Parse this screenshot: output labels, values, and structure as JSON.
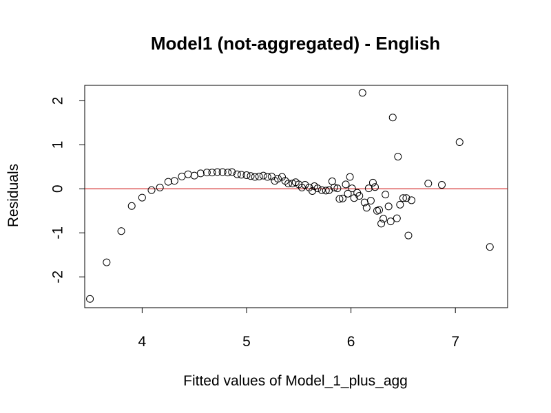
{
  "chart_data": {
    "type": "scatter",
    "title": "Model1 (not-aggregated) - English",
    "xlabel": "Fitted values of Model_1_plus_agg",
    "ylabel": "Residuals",
    "xlim": [
      3.45,
      7.5
    ],
    "ylim": [
      -2.7,
      2.35
    ],
    "xticks": [
      4,
      5,
      6,
      7
    ],
    "yticks": [
      -2,
      -1,
      0,
      1,
      2
    ],
    "grid": false,
    "reference_line": {
      "y": 0,
      "color": "#cc0000"
    },
    "marker": {
      "shape": "open-circle",
      "color": "#000000"
    },
    "points": [
      {
        "x": 3.5,
        "y": -2.5
      },
      {
        "x": 3.66,
        "y": -1.67
      },
      {
        "x": 3.8,
        "y": -0.96
      },
      {
        "x": 3.9,
        "y": -0.39
      },
      {
        "x": 4.0,
        "y": -0.2
      },
      {
        "x": 4.09,
        "y": -0.03
      },
      {
        "x": 4.17,
        "y": 0.03
      },
      {
        "x": 4.25,
        "y": 0.16
      },
      {
        "x": 4.31,
        "y": 0.18
      },
      {
        "x": 4.38,
        "y": 0.28
      },
      {
        "x": 4.44,
        "y": 0.33
      },
      {
        "x": 4.5,
        "y": 0.3
      },
      {
        "x": 4.56,
        "y": 0.35
      },
      {
        "x": 4.62,
        "y": 0.37
      },
      {
        "x": 4.67,
        "y": 0.37
      },
      {
        "x": 4.72,
        "y": 0.38
      },
      {
        "x": 4.77,
        "y": 0.38
      },
      {
        "x": 4.82,
        "y": 0.37
      },
      {
        "x": 4.86,
        "y": 0.38
      },
      {
        "x": 4.91,
        "y": 0.33
      },
      {
        "x": 4.95,
        "y": 0.32
      },
      {
        "x": 5.0,
        "y": 0.31
      },
      {
        "x": 5.04,
        "y": 0.29
      },
      {
        "x": 5.08,
        "y": 0.27
      },
      {
        "x": 5.12,
        "y": 0.28
      },
      {
        "x": 5.16,
        "y": 0.3
      },
      {
        "x": 5.2,
        "y": 0.27
      },
      {
        "x": 5.24,
        "y": 0.28
      },
      {
        "x": 5.27,
        "y": 0.18
      },
      {
        "x": 5.3,
        "y": 0.23
      },
      {
        "x": 5.34,
        "y": 0.27
      },
      {
        "x": 5.37,
        "y": 0.18
      },
      {
        "x": 5.4,
        "y": 0.12
      },
      {
        "x": 5.44,
        "y": 0.12
      },
      {
        "x": 5.47,
        "y": 0.15
      },
      {
        "x": 5.5,
        "y": 0.1
      },
      {
        "x": 5.53,
        "y": 0.03
      },
      {
        "x": 5.56,
        "y": 0.09
      },
      {
        "x": 5.6,
        "y": 0.03
      },
      {
        "x": 5.63,
        "y": -0.05
      },
      {
        "x": 5.65,
        "y": 0.06
      },
      {
        "x": 5.68,
        "y": 0.01
      },
      {
        "x": 5.72,
        "y": -0.03
      },
      {
        "x": 5.76,
        "y": -0.04
      },
      {
        "x": 5.79,
        "y": -0.03
      },
      {
        "x": 5.82,
        "y": 0.17
      },
      {
        "x": 5.84,
        "y": 0.03
      },
      {
        "x": 5.87,
        "y": 0.01
      },
      {
        "x": 5.89,
        "y": -0.23
      },
      {
        "x": 5.92,
        "y": -0.22
      },
      {
        "x": 5.95,
        "y": 0.1
      },
      {
        "x": 5.97,
        "y": -0.11
      },
      {
        "x": 5.99,
        "y": 0.27
      },
      {
        "x": 6.01,
        "y": 0.01
      },
      {
        "x": 6.03,
        "y": -0.21
      },
      {
        "x": 6.06,
        "y": -0.09
      },
      {
        "x": 6.08,
        "y": -0.16
      },
      {
        "x": 6.11,
        "y": 2.18
      },
      {
        "x": 6.13,
        "y": -0.31
      },
      {
        "x": 6.15,
        "y": -0.43
      },
      {
        "x": 6.17,
        "y": 0.01
      },
      {
        "x": 6.19,
        "y": -0.27
      },
      {
        "x": 6.21,
        "y": 0.14
      },
      {
        "x": 6.23,
        "y": 0.04
      },
      {
        "x": 6.25,
        "y": -0.5
      },
      {
        "x": 6.27,
        "y": -0.48
      },
      {
        "x": 6.29,
        "y": -0.79
      },
      {
        "x": 6.31,
        "y": -0.68
      },
      {
        "x": 6.33,
        "y": -0.13
      },
      {
        "x": 6.36,
        "y": -0.4
      },
      {
        "x": 6.38,
        "y": -0.74
      },
      {
        "x": 6.4,
        "y": 1.62
      },
      {
        "x": 6.44,
        "y": -0.67
      },
      {
        "x": 6.45,
        "y": 0.73
      },
      {
        "x": 6.47,
        "y": -0.36
      },
      {
        "x": 6.5,
        "y": -0.21
      },
      {
        "x": 6.53,
        "y": -0.21
      },
      {
        "x": 6.55,
        "y": -1.06
      },
      {
        "x": 6.58,
        "y": -0.26
      },
      {
        "x": 6.74,
        "y": 0.12
      },
      {
        "x": 6.87,
        "y": 0.09
      },
      {
        "x": 7.04,
        "y": 1.06
      },
      {
        "x": 7.33,
        "y": -1.32
      }
    ]
  }
}
